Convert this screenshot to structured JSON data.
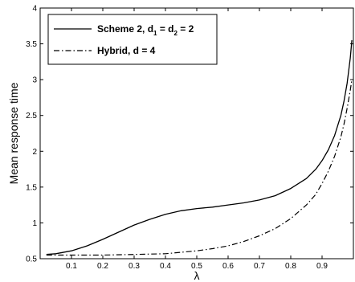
{
  "chart_data": {
    "type": "line",
    "xlabel": "λ",
    "ylabel": "Mean response time",
    "xlim": [
      0,
      1
    ],
    "ylim": [
      0.5,
      4
    ],
    "xticks": [
      0.1,
      0.2,
      0.3,
      0.4,
      0.5,
      0.6,
      0.7,
      0.8,
      0.9
    ],
    "xtick_labels": [
      "0.1",
      "0.2",
      "0.3",
      "0.4",
      "0.5",
      "0.6",
      "0.7",
      "0.8",
      "0.9"
    ],
    "yticks": [
      0.5,
      1,
      1.5,
      2,
      2.5,
      3,
      3.5,
      4
    ],
    "ytick_labels": [
      "0.5",
      "1",
      "1.5",
      "2",
      "2.5",
      "3",
      "3.5",
      "4"
    ],
    "grid": false,
    "legend_position": "top-left",
    "series": [
      {
        "name": "Scheme 2, d1 = d2 = 2",
        "legend_main": "Scheme 2, d",
        "legend_sub1": "1",
        "legend_mid": " = d",
        "legend_sub2": "2",
        "legend_tail": " = 2",
        "style": "solid",
        "x": [
          0.02,
          0.05,
          0.1,
          0.15,
          0.2,
          0.25,
          0.3,
          0.35,
          0.4,
          0.45,
          0.5,
          0.55,
          0.6,
          0.65,
          0.7,
          0.75,
          0.8,
          0.85,
          0.88,
          0.9,
          0.92,
          0.94,
          0.96,
          0.97,
          0.98,
          0.99,
          0.995
        ],
        "y": [
          0.56,
          0.57,
          0.61,
          0.68,
          0.77,
          0.87,
          0.97,
          1.05,
          1.12,
          1.17,
          1.2,
          1.22,
          1.25,
          1.28,
          1.32,
          1.38,
          1.48,
          1.62,
          1.75,
          1.87,
          2.02,
          2.22,
          2.5,
          2.7,
          2.95,
          3.3,
          3.55
        ]
      },
      {
        "name": "Hybrid, d = 4",
        "legend_main": "Hybrid, d = 4",
        "style": "dashdot",
        "x": [
          0.02,
          0.1,
          0.2,
          0.3,
          0.4,
          0.45,
          0.5,
          0.55,
          0.6,
          0.65,
          0.7,
          0.75,
          0.8,
          0.85,
          0.88,
          0.9,
          0.92,
          0.94,
          0.96,
          0.97,
          0.98,
          0.99,
          0.995
        ],
        "y": [
          0.55,
          0.55,
          0.55,
          0.56,
          0.57,
          0.59,
          0.61,
          0.64,
          0.68,
          0.74,
          0.82,
          0.92,
          1.06,
          1.25,
          1.4,
          1.55,
          1.72,
          1.93,
          2.2,
          2.38,
          2.6,
          2.85,
          3.0
        ]
      }
    ]
  }
}
